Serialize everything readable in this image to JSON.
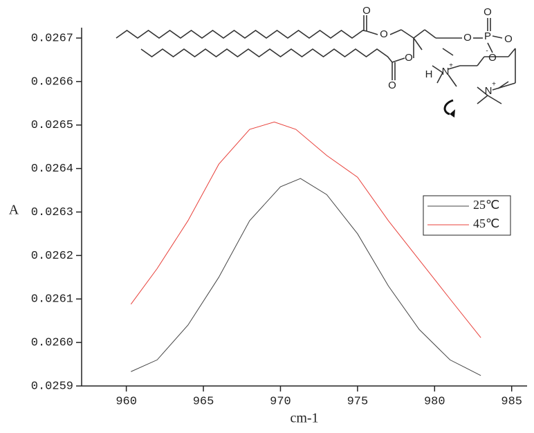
{
  "chart_data": {
    "type": "line",
    "x_label": "cm-1",
    "y_label": "A",
    "xlim": [
      957.1,
      986
    ],
    "xticks": [
      960,
      965,
      970,
      975,
      980,
      985
    ],
    "ylim": [
      0.0259,
      0.0267
    ],
    "yticks": [
      0.0259,
      {
        "value": 0.026,
        "label": "0.0260"
      },
      0.0261,
      0.0262,
      0.0263,
      0.0264,
      0.0265,
      0.0266,
      0.0267
    ],
    "legend": "right",
    "series": [
      {
        "name": "25℃",
        "color": "#444444",
        "x": [
          960.3,
          962,
          964,
          966,
          968,
          970,
          971.3,
          973,
          975,
          977,
          979,
          981,
          982,
          983
        ],
        "values": [
          0.025933,
          0.02596,
          0.02604,
          0.02615,
          0.02628,
          0.026358,
          0.026377,
          0.02634,
          0.02625,
          0.02613,
          0.02603,
          0.02596,
          0.025942,
          0.025924
        ]
      },
      {
        "name": "45℃",
        "color": "#e8403a",
        "x": [
          960.3,
          962,
          964,
          966,
          968,
          969.6,
          971,
          973,
          975,
          977,
          979,
          981,
          983
        ],
        "values": [
          0.026088,
          0.02617,
          0.02628,
          0.02641,
          0.02649,
          0.026507,
          0.02649,
          0.02643,
          0.02638,
          0.02628,
          0.02619,
          0.0261,
          0.026011
        ]
      }
    ],
    "annotations": [
      "O",
      "O",
      "O",
      "O",
      "H",
      "O",
      "P",
      "O",
      "O",
      "O",
      "-",
      "N",
      "+",
      "N",
      "+"
    ]
  }
}
